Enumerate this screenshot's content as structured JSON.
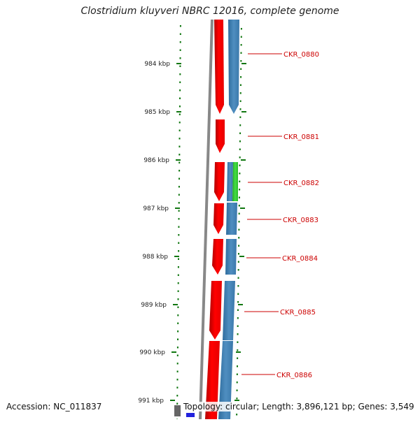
{
  "title": "Clostridium kluyveri NBRC 12016, complete genome",
  "footer": {
    "accession": "Accession: NC_011837",
    "summary": "Topology: circular; Length: 3,896,121 bp; Genes: 3,549"
  },
  "ticks": [
    {
      "label": "984 kbp"
    },
    {
      "label": "985 kbp"
    },
    {
      "label": "986 kbp"
    },
    {
      "label": "987 kbp"
    },
    {
      "label": "988 kbp"
    },
    {
      "label": "989 kbp"
    },
    {
      "label": "990 kbp"
    },
    {
      "label": "991 kbp"
    }
  ],
  "genes": [
    {
      "label": "CKR_0880"
    },
    {
      "label": "CKR_0881"
    },
    {
      "label": "CKR_0882"
    },
    {
      "label": "CKR_0883"
    },
    {
      "label": "CKR_0884"
    },
    {
      "label": "CKR_0885"
    },
    {
      "label": "CKR_0886"
    }
  ],
  "colors": {
    "forward_track": "#ff0000",
    "reverse_track": "#4682b4",
    "highlight_track": "#33cc33",
    "backbone": "#888888",
    "tick": "#117711",
    "gene_label": "#cc0000"
  }
}
